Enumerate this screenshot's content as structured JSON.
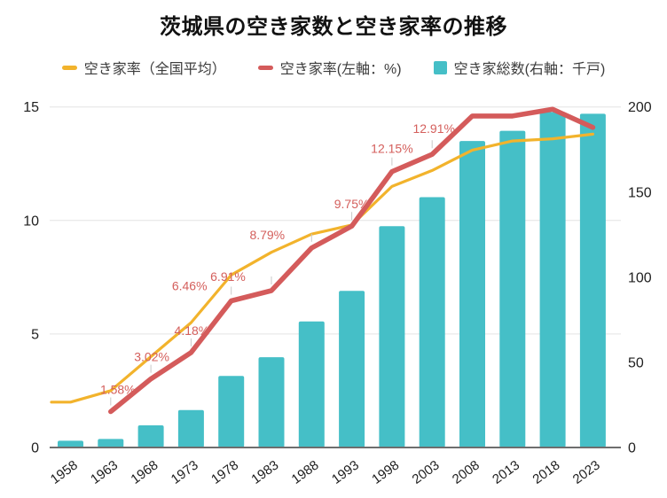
{
  "title": "茨城県の空き家数と空き家率の推移",
  "legend": [
    {
      "label": "空き家率（全国平均）",
      "swatch": "line",
      "color": "#F2B32C"
    },
    {
      "label": "空き家率(左軸：%)",
      "swatch": "line",
      "color": "#D45B5B"
    },
    {
      "label": "空き家総数(右軸：千戸)",
      "swatch": "square",
      "color": "#45BFC7"
    }
  ],
  "colors": {
    "bar": "#45BFC7",
    "prefecture_line": "#D45B5B",
    "national_line": "#F2B32C",
    "point_label": "#D45F5C",
    "grid": "#E3E3E3",
    "axis_line": "#6E6E6E",
    "stem": "#C9C9C9"
  },
  "chart_data": {
    "type": "combo",
    "title": "茨城県の空き家数と空き家率の推移",
    "categories": [
      "1958",
      "1963",
      "1968",
      "1973",
      "1978",
      "1983",
      "1988",
      "1993",
      "1998",
      "2003",
      "2008",
      "2013",
      "2018",
      "2023"
    ],
    "series": [
      {
        "name": "空き家率（全国平均）",
        "type": "line",
        "axis": "left",
        "color": "#F2B32C",
        "values": [
          2.0,
          2.5,
          4.0,
          5.5,
          7.6,
          8.6,
          9.4,
          9.8,
          11.5,
          12.2,
          13.1,
          13.5,
          13.6,
          13.8
        ]
      },
      {
        "name": "空き家率(左軸：%)",
        "type": "line",
        "axis": "left",
        "color": "#D45B5B",
        "values": [
          null,
          1.58,
          3.02,
          4.18,
          6.46,
          6.91,
          8.79,
          9.75,
          12.15,
          12.91,
          14.6,
          14.6,
          14.9,
          14.1
        ],
        "point_labels": [
          "",
          "1.58%",
          "3.02%",
          "4.18%",
          "6.46%",
          "6.91%",
          "8.79%",
          "9.75%",
          "12.15%",
          "12.91%",
          "",
          "",
          "",
          ""
        ]
      },
      {
        "name": "空き家総数(右軸：千戸)",
        "type": "bar",
        "axis": "right",
        "color": "#45BFC7",
        "values": [
          4,
          5,
          13,
          22,
          42,
          53,
          74,
          92,
          130,
          147,
          180,
          186,
          197,
          196
        ]
      }
    ],
    "left_axis": {
      "ticks": [
        0,
        5,
        10,
        15
      ],
      "range": [
        0,
        15
      ],
      "unit": "%"
    },
    "right_axis": {
      "ticks": [
        0,
        50,
        100,
        150,
        200
      ],
      "range": [
        0,
        200
      ],
      "unit": "千戸"
    },
    "grid": true,
    "legend_position": "top"
  }
}
